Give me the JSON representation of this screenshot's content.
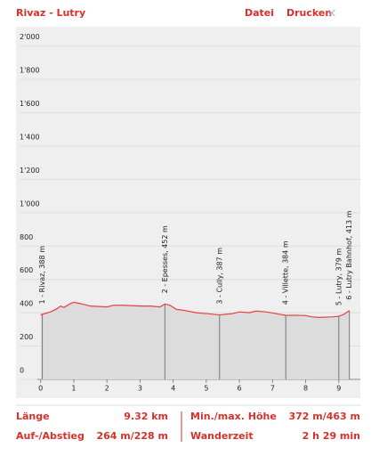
{
  "header": {
    "title": "Rivaz - Lutry",
    "menu": [
      "Datei",
      "Drucken"
    ],
    "close": "×"
  },
  "chart_data": {
    "type": "area",
    "color": "#e8403a",
    "fill": "#dcdcdc",
    "grid": true,
    "x": [
      0,
      0.3,
      0.5,
      0.6,
      0.7,
      0.9,
      1.0,
      1.2,
      1.5,
      2.0,
      2.2,
      2.5,
      3.0,
      3.3,
      3.6,
      3.75,
      3.9,
      4.1,
      4.3,
      4.7,
      5.0,
      5.4,
      5.8,
      6.0,
      6.3,
      6.5,
      6.8,
      7.1,
      7.4,
      7.7,
      8.0,
      8.2,
      8.4,
      8.8,
      9.0,
      9.15,
      9.32
    ],
    "values": [
      388,
      405,
      425,
      440,
      432,
      455,
      463,
      455,
      440,
      435,
      445,
      445,
      440,
      440,
      435,
      452,
      445,
      420,
      415,
      400,
      395,
      387,
      395,
      405,
      400,
      410,
      405,
      395,
      384,
      385,
      383,
      375,
      372,
      375,
      379,
      390,
      413
    ],
    "xlim": [
      -0.1,
      9.65
    ],
    "xticks": [
      0,
      1,
      2,
      3,
      4,
      5,
      6,
      7,
      8,
      9
    ],
    "ylim": [
      0,
      2100
    ],
    "yticks": [
      0,
      200,
      400,
      600,
      800,
      {
        "value": 1000,
        "label": "1'000"
      },
      {
        "value": 1200,
        "label": "1'200"
      },
      {
        "value": 1400,
        "label": "1'400"
      },
      {
        "value": 1600,
        "label": "1'600"
      },
      {
        "value": 1800,
        "label": "1'800"
      },
      {
        "value": 2000,
        "label": "2'000"
      }
    ],
    "waypoints": [
      {
        "label": "1 - Rivaz, 388 m",
        "x": 0.05,
        "y": 388
      },
      {
        "label": "2 - Epesses, 452 m",
        "x": 3.75,
        "y": 452
      },
      {
        "label": "3 - Cully, 387 m",
        "x": 5.4,
        "y": 387
      },
      {
        "label": "4 - Villette, 384 m",
        "x": 7.4,
        "y": 384
      },
      {
        "label": "5 - Lutry, 379 m",
        "x": 9.0,
        "y": 379
      },
      {
        "label": "6 - Lutry Bahnhof, 413 m",
        "x": 9.32,
        "y": 413
      }
    ]
  },
  "stats": [
    [
      "Länge",
      "9.32 km"
    ],
    [
      "Min./max. Höhe",
      "372 m/463 m"
    ],
    [
      "Auf-/Abstieg",
      "264 m/228 m"
    ],
    [
      "Wanderzeit",
      "2 h 29 min"
    ]
  ]
}
